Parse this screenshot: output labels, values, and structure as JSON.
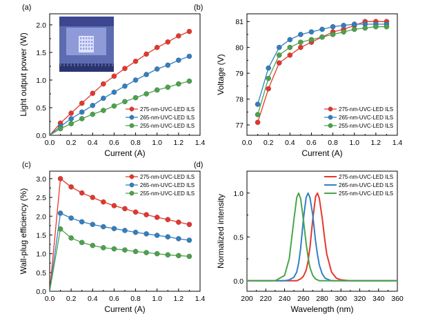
{
  "chart_data": [
    {
      "type": "line",
      "panel_label": "(a)",
      "xlabel": "Current (A)",
      "ylabel": "Light output power (W)",
      "xlim": [
        0.0,
        1.4
      ],
      "ylim": [
        0.0,
        2.2
      ],
      "xticks": [
        "0.0",
        "0.2",
        "0.4",
        "0.6",
        "0.8",
        "1.0",
        "1.2",
        "1.4"
      ],
      "yticks": [
        "0.0",
        "0.5",
        "1.0",
        "1.5",
        "2.0"
      ],
      "legend_position": "bottom-right",
      "inset_image": true,
      "x": [
        0.0,
        0.1,
        0.2,
        0.3,
        0.4,
        0.5,
        0.6,
        0.7,
        0.8,
        0.9,
        1.0,
        1.1,
        1.2,
        1.3
      ],
      "series": [
        {
          "name": "275-nm-UVC-LED ILS",
          "color": "#e8352a",
          "values": [
            0.0,
            0.22,
            0.4,
            0.58,
            0.76,
            0.93,
            1.07,
            1.21,
            1.34,
            1.47,
            1.59,
            1.69,
            1.8,
            1.88
          ]
        },
        {
          "name": "265-nm-UVC-LED ILS",
          "color": "#2f7fc4",
          "values": [
            0.0,
            0.16,
            0.3,
            0.42,
            0.54,
            0.67,
            0.78,
            0.89,
            1.0,
            1.1,
            1.2,
            1.27,
            1.36,
            1.43
          ]
        },
        {
          "name": "255-nm-UVC-LED ILS",
          "color": "#4aa34a",
          "values": [
            0.0,
            0.12,
            0.21,
            0.3,
            0.38,
            0.45,
            0.53,
            0.61,
            0.68,
            0.75,
            0.82,
            0.87,
            0.93,
            0.98
          ]
        }
      ]
    },
    {
      "type": "line",
      "panel_label": "(b)",
      "xlabel": "Current (A)",
      "ylabel": "Voltage (V)",
      "xlim": [
        0.0,
        1.4
      ],
      "ylim": [
        76.6,
        81.3
      ],
      "xticks": [
        "0.0",
        "0.2",
        "0.4",
        "0.6",
        "0.8",
        "1.0",
        "1.2",
        "1.4"
      ],
      "yticks": [
        "77",
        "78",
        "79",
        "80",
        "81"
      ],
      "legend_position": "bottom-right",
      "x": [
        0.1,
        0.2,
        0.3,
        0.4,
        0.5,
        0.6,
        0.7,
        0.8,
        0.9,
        1.0,
        1.1,
        1.2,
        1.3
      ],
      "series": [
        {
          "name": "275-nm-UVC-LED ILS",
          "color": "#e8352a",
          "values": [
            77.1,
            78.4,
            79.4,
            79.7,
            80.0,
            80.2,
            80.4,
            80.6,
            80.7,
            80.85,
            81.0,
            81.0,
            81.0
          ]
        },
        {
          "name": "265-nm-UVC-LED ILS",
          "color": "#2f7fc4",
          "values": [
            77.8,
            79.2,
            80.0,
            80.3,
            80.5,
            80.6,
            80.7,
            80.8,
            80.85,
            80.9,
            80.9,
            80.9,
            80.9
          ]
        },
        {
          "name": "255-nm-UVC-LED ILS",
          "color": "#4aa34a",
          "values": [
            77.4,
            78.8,
            79.7,
            80.0,
            80.2,
            80.3,
            80.4,
            80.5,
            80.6,
            80.7,
            80.75,
            80.8,
            80.8
          ]
        }
      ]
    },
    {
      "type": "line",
      "panel_label": "(c)",
      "xlabel": "Current (A)",
      "ylabel": "Wall-plug efficiency (%)",
      "xlim": [
        0.0,
        1.4
      ],
      "ylim": [
        0.0,
        3.2
      ],
      "xticks": [
        "0.0",
        "0.2",
        "0.4",
        "0.6",
        "0.8",
        "1.0",
        "1.2",
        "1.4"
      ],
      "yticks": [
        "0.0",
        "0.5",
        "1.0",
        "1.5",
        "2.0",
        "2.5",
        "3.0"
      ],
      "legend_position": "top-right",
      "x": [
        0.0,
        0.1,
        0.2,
        0.3,
        0.4,
        0.5,
        0.6,
        0.7,
        0.8,
        0.9,
        1.0,
        1.1,
        1.2,
        1.3
      ],
      "series": [
        {
          "name": "275-nm-UVC-LED ILS",
          "color": "#e8352a",
          "values": [
            0.0,
            3.0,
            2.78,
            2.62,
            2.5,
            2.38,
            2.28,
            2.2,
            2.11,
            2.04,
            1.97,
            1.91,
            1.84,
            1.78
          ]
        },
        {
          "name": "265-nm-UVC-LED ILS",
          "color": "#2f7fc4",
          "values": [
            0.0,
            2.08,
            1.95,
            1.85,
            1.78,
            1.72,
            1.67,
            1.62,
            1.57,
            1.53,
            1.49,
            1.45,
            1.4,
            1.36
          ]
        },
        {
          "name": "255-nm-UVC-LED ILS",
          "color": "#4aa34a",
          "values": [
            0.0,
            1.66,
            1.42,
            1.3,
            1.22,
            1.16,
            1.13,
            1.1,
            1.06,
            1.03,
            1.0,
            0.97,
            0.95,
            0.93
          ]
        }
      ]
    },
    {
      "type": "line",
      "panel_label": "(d)",
      "xlabel": "Wavelength (nm)",
      "ylabel": "Normalized intensity",
      "xlim": [
        200,
        360
      ],
      "ylim": [
        -0.12,
        1.25
      ],
      "xticks": [
        "200",
        "220",
        "240",
        "260",
        "280",
        "300",
        "320",
        "340",
        "360"
      ],
      "yticks": [
        "0.0",
        "0.5",
        "1.0"
      ],
      "legend_position": "top-right",
      "x": [
        200,
        230,
        240,
        245,
        250,
        253,
        255,
        257,
        260,
        263,
        265,
        267,
        270,
        273,
        275,
        277,
        280,
        283,
        285,
        290,
        295,
        300,
        310,
        320,
        360
      ],
      "series": [
        {
          "name": "275-nm-UVC-LED ILS",
          "color": "#e8352a",
          "values": [
            0.0,
            0.0,
            0.0,
            0.0,
            0.0,
            0.0,
            0.01,
            0.02,
            0.05,
            0.12,
            0.22,
            0.38,
            0.7,
            0.96,
            1.0,
            0.94,
            0.72,
            0.45,
            0.3,
            0.1,
            0.03,
            0.01,
            0.0,
            0.0,
            0.0
          ]
        },
        {
          "name": "265-nm-UVC-LED ILS",
          "color": "#2f7fc4",
          "values": [
            0.0,
            0.0,
            0.0,
            0.01,
            0.04,
            0.1,
            0.2,
            0.36,
            0.7,
            0.95,
            1.0,
            0.95,
            0.75,
            0.45,
            0.3,
            0.18,
            0.08,
            0.03,
            0.02,
            0.0,
            0.0,
            0.0,
            0.0,
            0.0,
            0.0
          ]
        },
        {
          "name": "255-nm-UVC-LED ILS",
          "color": "#4aa34a",
          "values": [
            0.0,
            0.0,
            0.06,
            0.25,
            0.7,
            0.95,
            1.0,
            0.94,
            0.7,
            0.42,
            0.27,
            0.15,
            0.06,
            0.02,
            0.01,
            0.0,
            0.0,
            0.0,
            0.0,
            0.0,
            0.0,
            0.0,
            0.0,
            0.0,
            0.0
          ]
        }
      ]
    }
  ]
}
